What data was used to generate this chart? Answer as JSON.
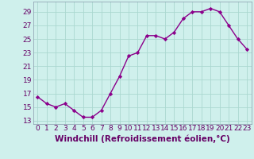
{
  "x": [
    0,
    1,
    2,
    3,
    4,
    5,
    6,
    7,
    8,
    9,
    10,
    11,
    12,
    13,
    14,
    15,
    16,
    17,
    18,
    19,
    20,
    21,
    22,
    23
  ],
  "y": [
    16.5,
    15.5,
    15.0,
    15.5,
    14.5,
    13.5,
    13.5,
    14.5,
    17.0,
    19.5,
    22.5,
    23.0,
    25.5,
    25.5,
    25.0,
    26.0,
    28.0,
    29.0,
    29.0,
    29.5,
    29.0,
    27.0,
    25.0,
    23.5
  ],
  "line_color": "#8B008B",
  "marker": "D",
  "marker_size": 2.2,
  "bg_color": "#cff0ec",
  "grid_color": "#aad8d0",
  "xlabel": "Windchill (Refroidissement éolien,°C)",
  "yticks": [
    13,
    15,
    17,
    19,
    21,
    23,
    25,
    27,
    29
  ],
  "xlim": [
    -0.5,
    23.5
  ],
  "ylim": [
    12.5,
    30.5
  ],
  "xlabel_fontsize": 7.5,
  "tick_fontsize": 6.5,
  "line_width": 1.0
}
